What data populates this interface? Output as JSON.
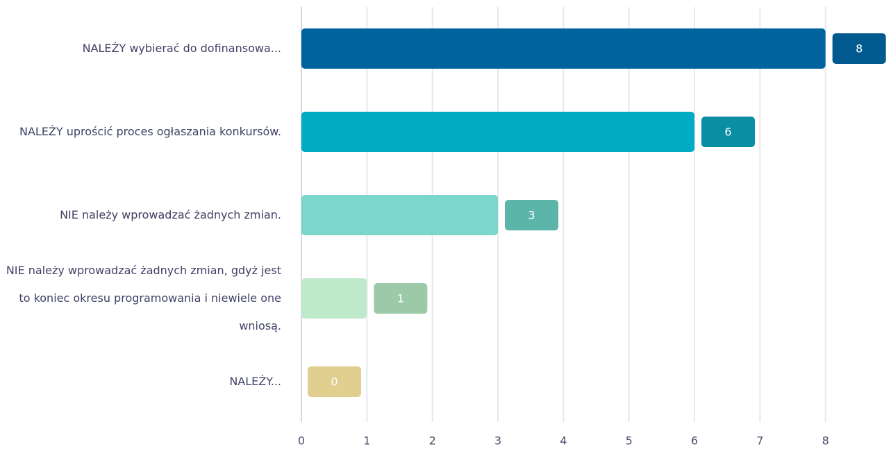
{
  "chart_data": {
    "type": "hbar",
    "categories": [
      "NALEŻY wybierać do dofinansowa...",
      "NALEŻY uprościć proces ogłaszania konkursów.",
      "NIE należy wprowadzać żadnych zmian.",
      "NIE należy wprowadzać żadnych zmian, gdyż jest to koniec okresu programowania i niewiele one wniosą.",
      "NALEŻY..."
    ],
    "values": [
      8,
      6,
      3,
      1,
      0
    ],
    "colors": [
      "#00639e",
      "#02abc4",
      "#7dd6cb",
      "#bee9cb",
      "#ecdca4"
    ],
    "label_colors": [
      "#005a8f",
      "#0a8ea3",
      "#5bb6a9",
      "#9ccaa8",
      "#e0cf8f"
    ],
    "xlim": [
      0,
      9
    ],
    "xticks": [
      0,
      1,
      2,
      3,
      4,
      5,
      6,
      7,
      8
    ],
    "grid": true
  }
}
